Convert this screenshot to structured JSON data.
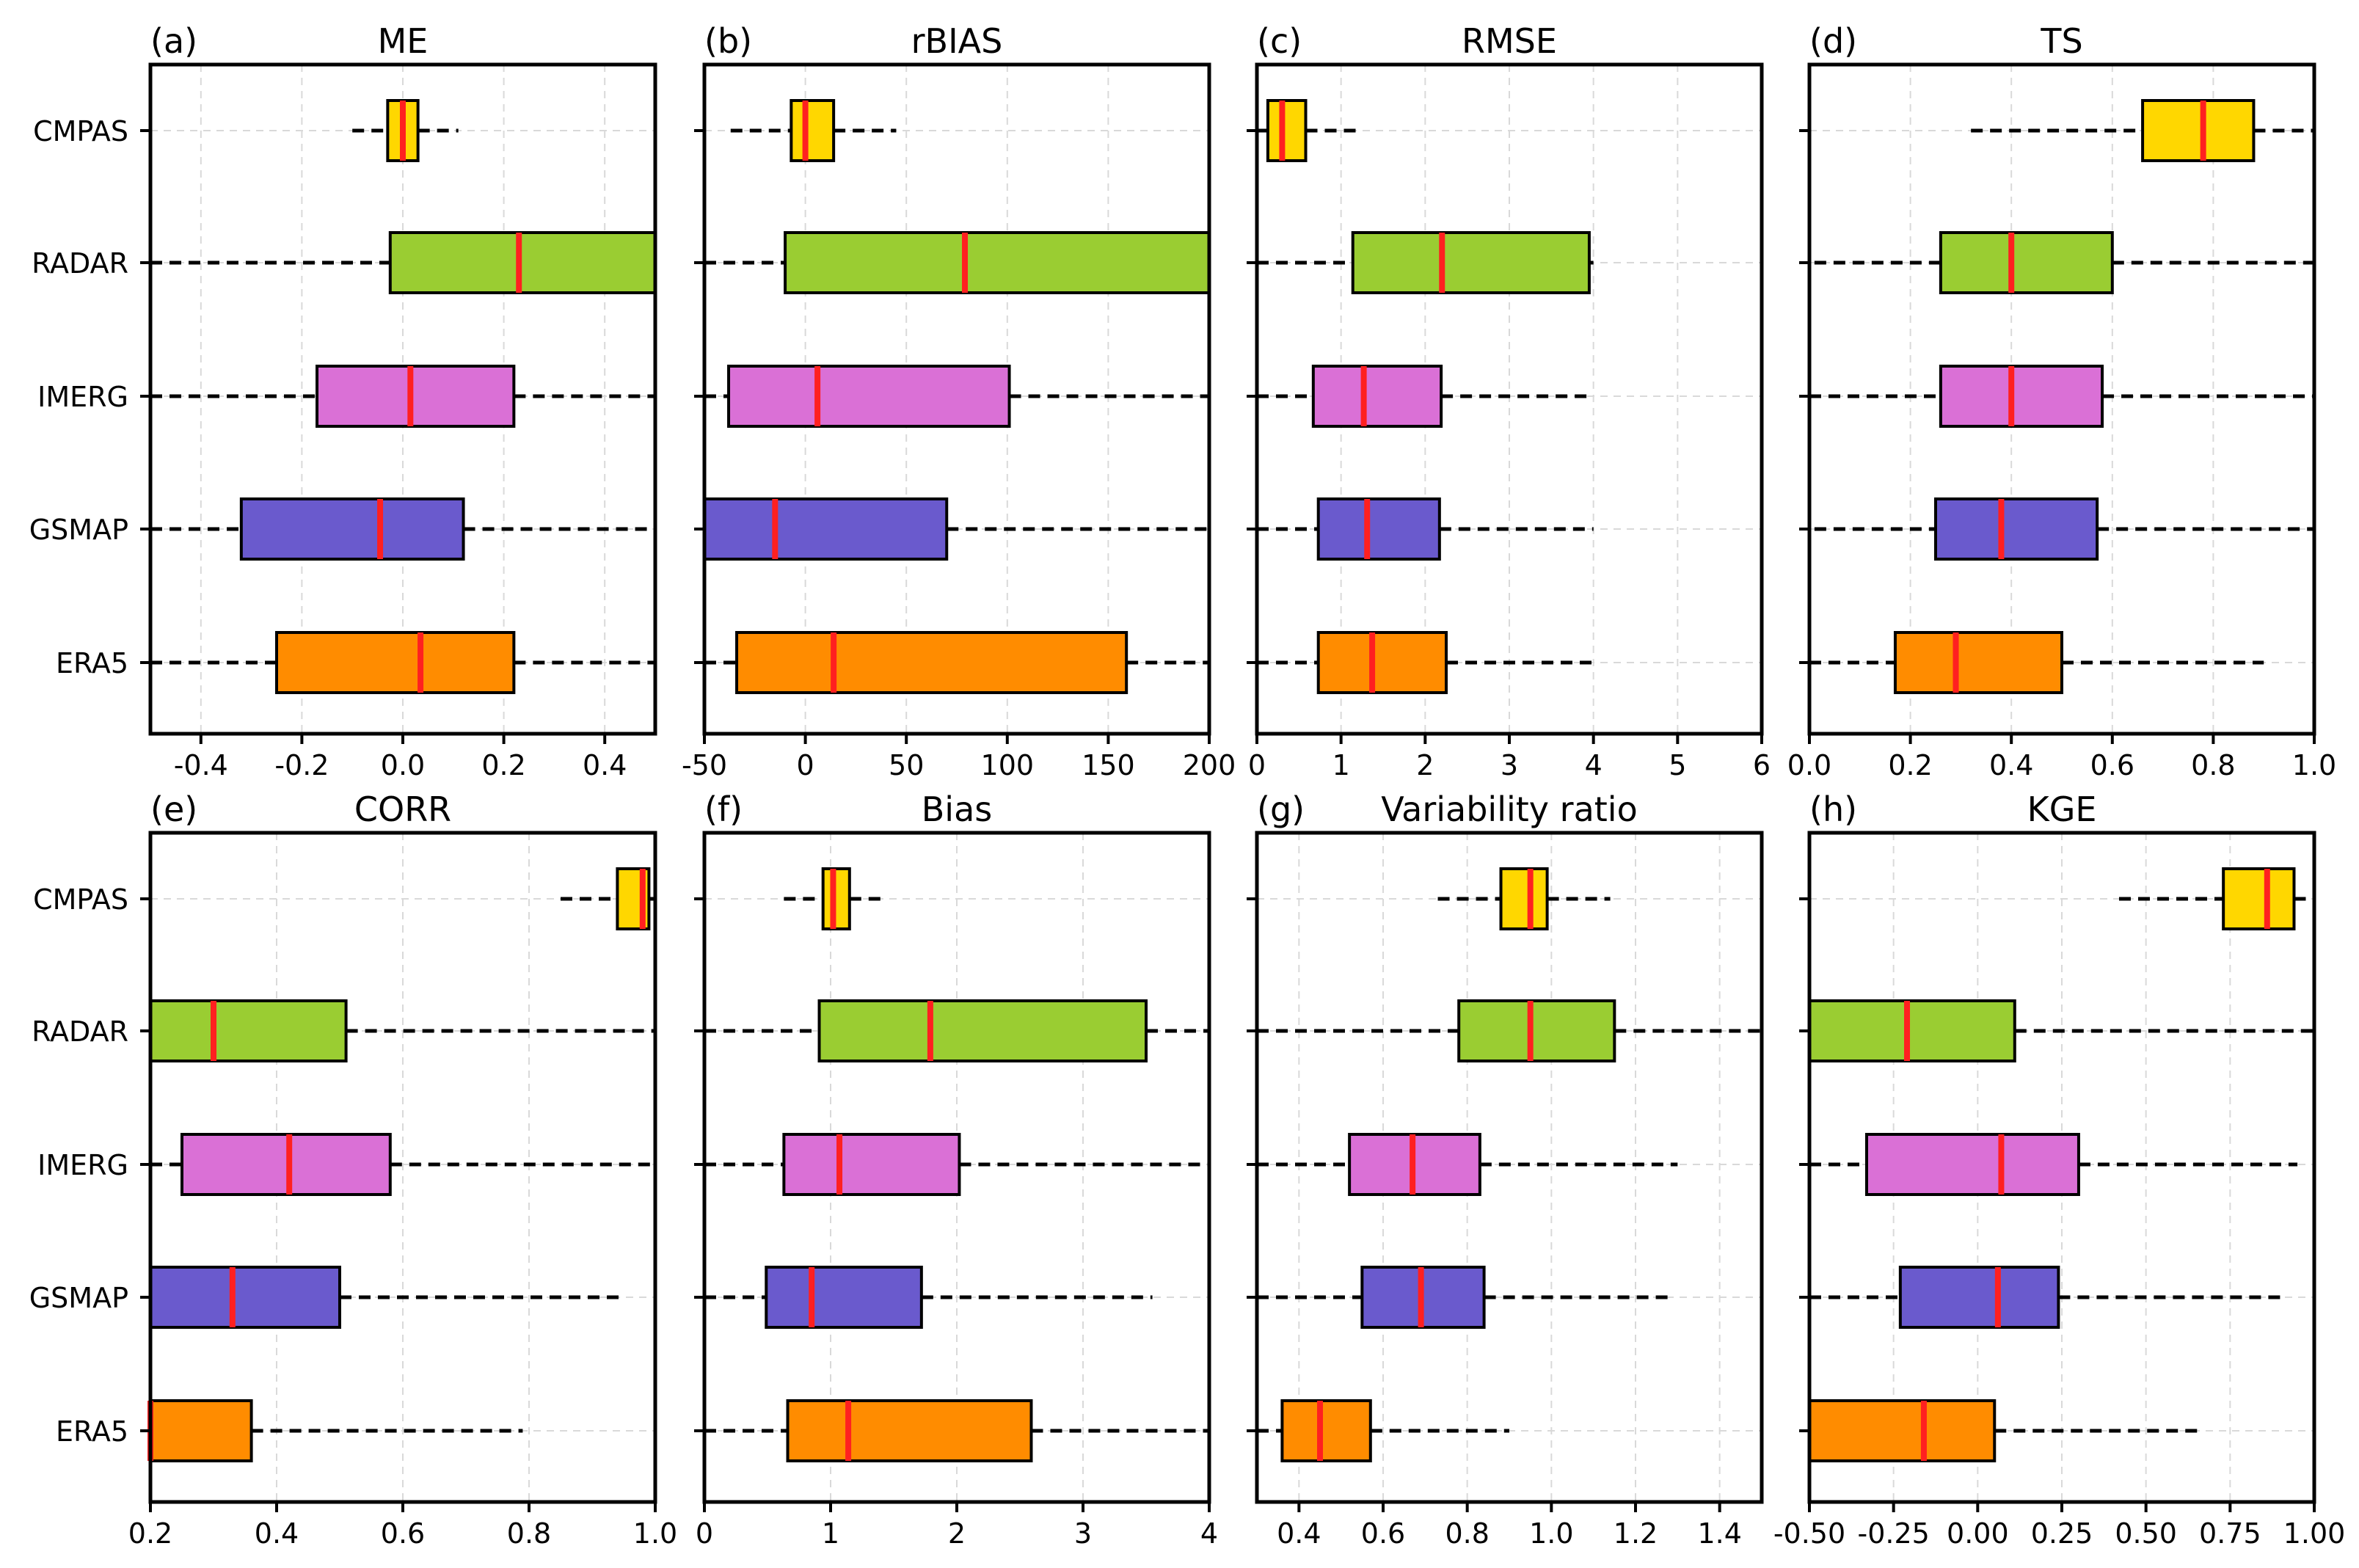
{
  "chart_data": {
    "type": "boxplot",
    "categories": [
      "CMPAS",
      "RADAR",
      "IMERG",
      "GSMAP",
      "ERA5"
    ],
    "colors": {
      "CMPAS": "#ffd700",
      "RADAR": "#9acd32",
      "IMERG": "#da70d6",
      "GSMAP": "#6a5acd",
      "ERA5": "#ff8c00",
      "median": "#ff2020",
      "grid": "#d9d9d9"
    },
    "panels": [
      {
        "label": "(a)",
        "title": "ME",
        "xlim": [
          -0.5,
          0.5
        ],
        "ticks": [
          -0.4,
          -0.2,
          0.0,
          0.2,
          0.4
        ],
        "tick_labels": [
          "-0.4",
          "-0.2",
          "0.0",
          "0.2",
          "0.4"
        ],
        "boxes": [
          {
            "name": "CMPAS",
            "whislo": -0.1,
            "q1": -0.03,
            "med": 0.0,
            "q3": 0.03,
            "whishi": 0.11
          },
          {
            "name": "RADAR",
            "whislo": -0.5,
            "q1": -0.025,
            "med": 0.23,
            "q3": 0.5,
            "whishi": 0.5
          },
          {
            "name": "IMERG",
            "whislo": -0.5,
            "q1": -0.17,
            "med": 0.015,
            "q3": 0.22,
            "whishi": 0.5
          },
          {
            "name": "GSMAP",
            "whislo": -0.5,
            "q1": -0.32,
            "med": -0.045,
            "q3": 0.12,
            "whishi": 0.5
          },
          {
            "name": "ERA5",
            "whislo": -0.5,
            "q1": -0.25,
            "med": 0.035,
            "q3": 0.22,
            "whishi": 0.5
          }
        ]
      },
      {
        "label": "(b)",
        "title": "rBIAS",
        "xlim": [
          -50,
          200
        ],
        "ticks": [
          -50,
          0,
          50,
          100,
          150,
          200
        ],
        "tick_labels": [
          "-50",
          "0",
          "50",
          "100",
          "150",
          "200"
        ],
        "boxes": [
          {
            "name": "CMPAS",
            "whislo": -37,
            "q1": -7,
            "med": 0,
            "q3": 14,
            "whishi": 45
          },
          {
            "name": "RADAR",
            "whislo": -50,
            "q1": -10,
            "med": 79,
            "q3": 200,
            "whishi": 200
          },
          {
            "name": "IMERG",
            "whislo": -50,
            "q1": -38,
            "med": 6,
            "q3": 101,
            "whishi": 200
          },
          {
            "name": "GSMAP",
            "whislo": -50,
            "q1": -50,
            "med": -15,
            "q3": 70,
            "whishi": 200
          },
          {
            "name": "ERA5",
            "whislo": -50,
            "q1": -34,
            "med": 14,
            "q3": 159,
            "whishi": 200
          }
        ]
      },
      {
        "label": "(c)",
        "title": "RMSE",
        "xlim": [
          0,
          6
        ],
        "ticks": [
          0,
          1,
          2,
          3,
          4,
          5,
          6
        ],
        "tick_labels": [
          "0",
          "1",
          "2",
          "3",
          "4",
          "5",
          "6"
        ],
        "boxes": [
          {
            "name": "CMPAS",
            "whislo": 0.0,
            "q1": 0.13,
            "med": 0.3,
            "q3": 0.58,
            "whishi": 1.25
          },
          {
            "name": "RADAR",
            "whislo": 0.0,
            "q1": 1.14,
            "med": 2.2,
            "q3": 3.95,
            "whishi": 4.0
          },
          {
            "name": "IMERG",
            "whislo": 0.0,
            "q1": 0.67,
            "med": 1.27,
            "q3": 2.19,
            "whishi": 4.0
          },
          {
            "name": "GSMAP",
            "whislo": 0.0,
            "q1": 0.73,
            "med": 1.31,
            "q3": 2.17,
            "whishi": 4.0
          },
          {
            "name": "ERA5",
            "whislo": 0.0,
            "q1": 0.73,
            "med": 1.37,
            "q3": 2.25,
            "whishi": 4.0
          }
        ]
      },
      {
        "label": "(d)",
        "title": "TS",
        "xlim": [
          0.0,
          1.0
        ],
        "ticks": [
          0.0,
          0.2,
          0.4,
          0.6,
          0.8,
          1.0
        ],
        "tick_labels": [
          "0.0",
          "0.2",
          "0.4",
          "0.6",
          "0.8",
          "1.0"
        ],
        "boxes": [
          {
            "name": "CMPAS",
            "whislo": 0.32,
            "q1": 0.66,
            "med": 0.78,
            "q3": 0.88,
            "whishi": 1.0
          },
          {
            "name": "RADAR",
            "whislo": 0.01,
            "q1": 0.26,
            "med": 0.4,
            "q3": 0.6,
            "whishi": 1.0
          },
          {
            "name": "IMERG",
            "whislo": 0.0,
            "q1": 0.26,
            "med": 0.4,
            "q3": 0.58,
            "whishi": 1.0
          },
          {
            "name": "GSMAP",
            "whislo": 0.01,
            "q1": 0.25,
            "med": 0.38,
            "q3": 0.57,
            "whishi": 1.0
          },
          {
            "name": "ERA5",
            "whislo": 0.0,
            "q1": 0.17,
            "med": 0.29,
            "q3": 0.5,
            "whishi": 0.9
          }
        ]
      },
      {
        "label": "(e)",
        "title": "CORR",
        "xlim": [
          0.2,
          1.0
        ],
        "ticks": [
          0.2,
          0.4,
          0.6,
          0.8,
          1.0
        ],
        "tick_labels": [
          "0.2",
          "0.4",
          "0.6",
          "0.8",
          "1.0"
        ],
        "boxes": [
          {
            "name": "CMPAS",
            "whislo": 0.85,
            "q1": 0.94,
            "med": 0.98,
            "q3": 0.99,
            "whishi": 1.0
          },
          {
            "name": "RADAR",
            "whislo": 0.2,
            "q1": 0.2,
            "med": 0.3,
            "q3": 0.51,
            "whishi": 1.0
          },
          {
            "name": "IMERG",
            "whislo": 0.2,
            "q1": 0.25,
            "med": 0.42,
            "q3": 0.58,
            "whishi": 1.0
          },
          {
            "name": "GSMAP",
            "whislo": 0.2,
            "q1": 0.2,
            "med": 0.33,
            "q3": 0.5,
            "whishi": 0.95
          },
          {
            "name": "ERA5",
            "whislo": 0.2,
            "q1": 0.2,
            "med": 0.2,
            "q3": 0.36,
            "whishi": 0.79
          }
        ]
      },
      {
        "label": "(f)",
        "title": "Bias",
        "xlim": [
          0,
          4
        ],
        "ticks": [
          0,
          1,
          2,
          3,
          4
        ],
        "tick_labels": [
          "0",
          "1",
          "2",
          "3",
          "4"
        ],
        "boxes": [
          {
            "name": "CMPAS",
            "whislo": 0.63,
            "q1": 0.94,
            "med": 1.02,
            "q3": 1.15,
            "whishi": 1.45
          },
          {
            "name": "RADAR",
            "whislo": 0.0,
            "q1": 0.91,
            "med": 1.79,
            "q3": 3.5,
            "whishi": 4.0
          },
          {
            "name": "IMERG",
            "whislo": 0.0,
            "q1": 0.63,
            "med": 1.07,
            "q3": 2.02,
            "whishi": 4.0
          },
          {
            "name": "GSMAP",
            "whislo": 0.0,
            "q1": 0.49,
            "med": 0.85,
            "q3": 1.72,
            "whishi": 3.55
          },
          {
            "name": "ERA5",
            "whislo": 0.0,
            "q1": 0.66,
            "med": 1.14,
            "q3": 2.59,
            "whishi": 4.0
          }
        ]
      },
      {
        "label": "(g)",
        "title": "Variability ratio",
        "xlim": [
          0.3,
          1.5
        ],
        "ticks": [
          0.4,
          0.6,
          0.8,
          1.0,
          1.2,
          1.4
        ],
        "tick_labels": [
          "0.4",
          "0.6",
          "0.8",
          "1.0",
          "1.2",
          "1.4"
        ],
        "boxes": [
          {
            "name": "CMPAS",
            "whislo": 0.73,
            "q1": 0.88,
            "med": 0.95,
            "q3": 0.99,
            "whishi": 1.14
          },
          {
            "name": "RADAR",
            "whislo": 0.3,
            "q1": 0.78,
            "med": 0.95,
            "q3": 1.15,
            "whishi": 1.5
          },
          {
            "name": "IMERG",
            "whislo": 0.3,
            "q1": 0.52,
            "med": 0.67,
            "q3": 0.83,
            "whishi": 1.3
          },
          {
            "name": "GSMAP",
            "whislo": 0.3,
            "q1": 0.55,
            "med": 0.69,
            "q3": 0.84,
            "whishi": 1.29
          },
          {
            "name": "ERA5",
            "whislo": 0.3,
            "q1": 0.36,
            "med": 0.45,
            "q3": 0.57,
            "whishi": 0.9
          }
        ]
      },
      {
        "label": "(h)",
        "title": "KGE",
        "xlim": [
          -0.5,
          1.0
        ],
        "ticks": [
          -0.5,
          -0.25,
          0.0,
          0.25,
          0.5,
          0.75,
          1.0
        ],
        "tick_labels": [
          "-0.50",
          "-0.25",
          "0.00",
          "0.25",
          "0.50",
          "0.75",
          "1.00"
        ],
        "boxes": [
          {
            "name": "CMPAS",
            "whislo": 0.42,
            "q1": 0.73,
            "med": 0.86,
            "q3": 0.94,
            "whishi": 1.0
          },
          {
            "name": "RADAR",
            "whislo": -0.5,
            "q1": -0.5,
            "med": -0.21,
            "q3": 0.11,
            "whishi": 1.0
          },
          {
            "name": "IMERG",
            "whislo": -0.5,
            "q1": -0.33,
            "med": 0.07,
            "q3": 0.3,
            "whishi": 0.95
          },
          {
            "name": "GSMAP",
            "whislo": -0.5,
            "q1": -0.23,
            "med": 0.06,
            "q3": 0.24,
            "whishi": 0.9
          },
          {
            "name": "ERA5",
            "whislo": -0.5,
            "q1": -0.5,
            "med": -0.16,
            "q3": 0.05,
            "whishi": 0.66
          }
        ]
      }
    ]
  }
}
